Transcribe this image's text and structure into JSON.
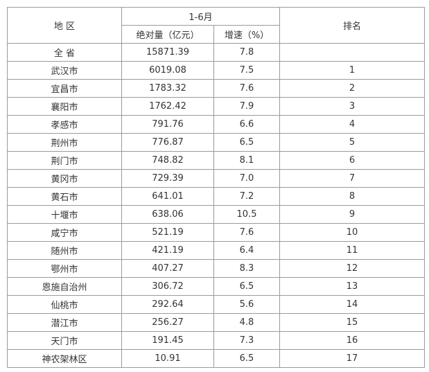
{
  "header": {
    "region": "地 区",
    "period": "1-6月",
    "absolute": "绝对量（亿元）",
    "growth": "增速（%）",
    "rank": "排名"
  },
  "table": {
    "rows": [
      [
        "全 省",
        "15871.39",
        "7.8"
      ],
      [
        "武汉市",
        "6019.08",
        "7.5",
        "1"
      ],
      [
        "宜昌市",
        "1783.32",
        "7.6",
        "2"
      ],
      [
        "襄阳市",
        "1762.42",
        "7.9",
        "3"
      ],
      [
        "孝感市",
        "791.76",
        "6.6",
        "4"
      ],
      [
        "荆州市",
        "776.87",
        "6.5",
        "5"
      ],
      [
        "荆门市",
        "748.82",
        "8.1",
        "6"
      ],
      [
        "黄冈市",
        "729.39",
        "7.0",
        "7"
      ],
      [
        "黄石市",
        "641.01",
        "7.2",
        "8"
      ],
      [
        "十堰市",
        "638.06",
        "10.5",
        "9"
      ],
      [
        "咸宁市",
        "521.19",
        "7.6",
        "10"
      ],
      [
        "随州市",
        "421.19",
        "6.4",
        "11"
      ],
      [
        "鄂州市",
        "407.27",
        "8.3",
        "12"
      ],
      [
        "恩施自治州",
        "306.72",
        "6.5",
        "13"
      ],
      [
        "仙桃市",
        "292.64",
        "5.6",
        "14"
      ],
      [
        "潜江市",
        "256.27",
        "4.8",
        "15"
      ],
      [
        "天门市",
        "191.45",
        "7.3",
        "16"
      ],
      [
        "神农架林区",
        "10.91",
        "6.5",
        "17"
      ]
    ]
  }
}
